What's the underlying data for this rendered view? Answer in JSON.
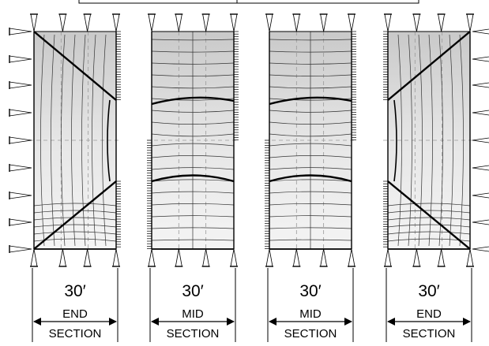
{
  "panels": [
    {
      "id": "end-left",
      "kind": "end-left",
      "dimension": "30′",
      "label_top": "END",
      "label_bottom": "SECTION"
    },
    {
      "id": "mid-left",
      "kind": "mid",
      "dimension": "30′",
      "label_top": "MID",
      "label_bottom": "SECTION"
    },
    {
      "id": "mid-right",
      "kind": "mid",
      "dimension": "30′",
      "label_top": "MID",
      "label_bottom": "SECTION"
    },
    {
      "id": "end-right",
      "kind": "end-right",
      "dimension": "30′",
      "label_top": "END",
      "label_bottom": "SECTION"
    }
  ],
  "colors": {
    "line": "#000000",
    "fill_dark": "#c9c9c9",
    "fill_light": "#f2f2f2",
    "contour": "#333333",
    "dashed": "#9a9a9a"
  },
  "icons": {
    "support": "support-triangle-icon",
    "dimension_arrow": "double-arrow-icon"
  }
}
